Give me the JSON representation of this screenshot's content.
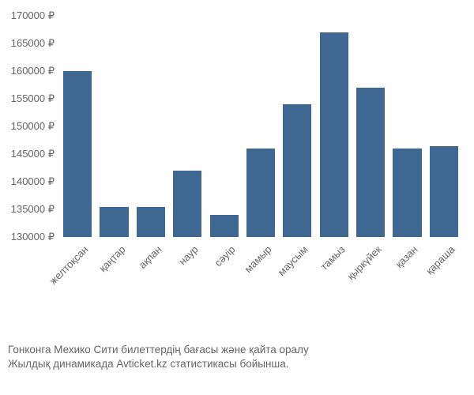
{
  "chart": {
    "type": "bar",
    "categories": [
      "желтоқсан",
      "қаңтар",
      "ақпан",
      "наур",
      "сәуір",
      "мамыр",
      "маусым",
      "тамыз",
      "қыркүйек",
      "қазан",
      "қараша"
    ],
    "values": [
      160000,
      135500,
      135500,
      142000,
      134000,
      146000,
      154000,
      167000,
      157000,
      146000,
      146500
    ],
    "bar_color": "#3e6892",
    "ylim": [
      130000,
      170000
    ],
    "ytick_step": 5000,
    "y_ticks": [
      130000,
      135000,
      140000,
      145000,
      150000,
      155000,
      160000,
      165000,
      170000
    ],
    "currency_suffix": " ₽",
    "background_color": "#ffffff",
    "tick_label_color": "#666666",
    "tick_fontsize": 13,
    "bar_width_ratio": 0.78,
    "x_label_rotation": -45
  },
  "caption": {
    "line1": "Гонконга Мехико Сити билеттердің бағасы және қайта оралу",
    "line2": "Жылдық динамикада Avticket.kz статистикасы бойынша.",
    "color": "#666666",
    "fontsize": 13.5
  }
}
